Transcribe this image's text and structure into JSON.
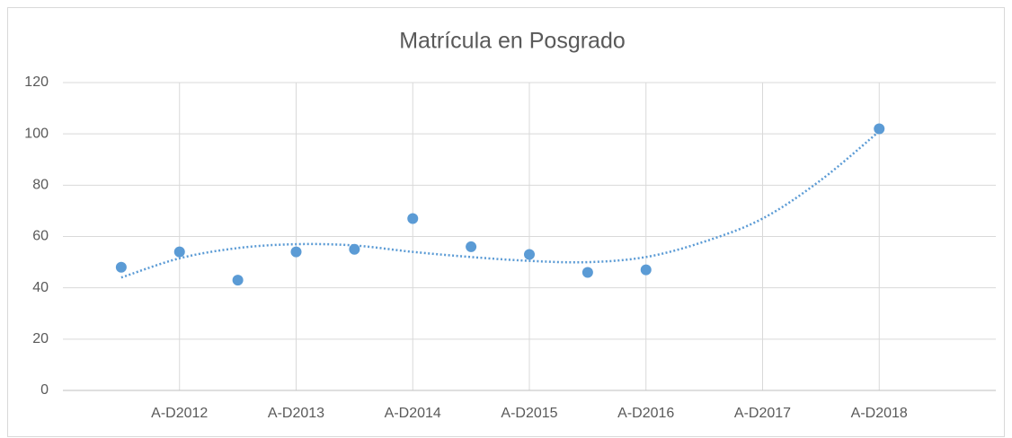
{
  "chart_data": {
    "type": "scatter",
    "title": "Matrícula en Posgrado",
    "categories": [
      null,
      "A-D2012",
      null,
      "A-D2013",
      null,
      "A-D2014",
      null,
      "A-D2015",
      null,
      "A-D2016",
      null,
      "A-D2017",
      null,
      "A-D2018"
    ],
    "values": [
      48,
      54,
      43,
      54,
      55,
      67,
      56,
      53,
      46,
      47,
      null,
      null,
      null,
      102
    ],
    "color": "#5b9bd5",
    "trendline": {
      "color": "#5b9bd5",
      "style": "dotted",
      "values": [
        44,
        51.5,
        55.5,
        57,
        56.5,
        54,
        52,
        50.5,
        50,
        52,
        58,
        67,
        82,
        101
      ]
    },
    "ylim": [
      0,
      120
    ],
    "yticks": [
      0,
      20,
      40,
      60,
      80,
      100,
      120
    ],
    "grid": true
  }
}
